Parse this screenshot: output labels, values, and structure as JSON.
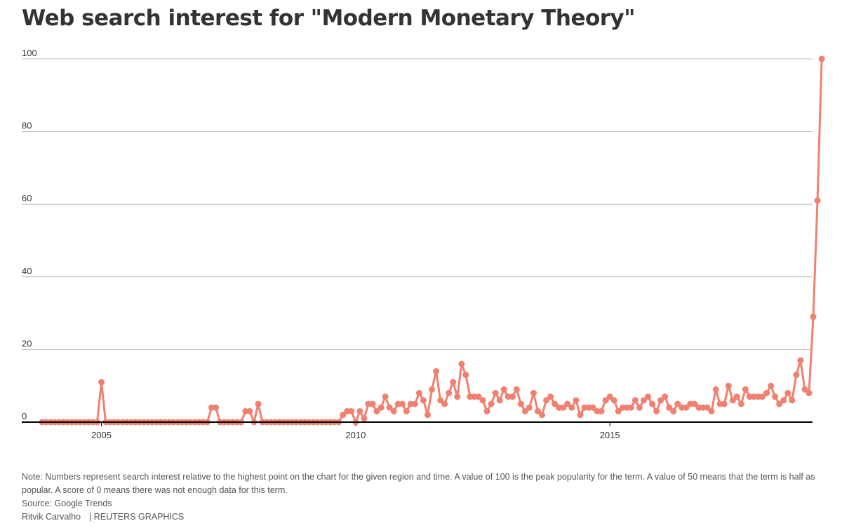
{
  "title": "Web search interest for \"Modern Monetary Theory\"",
  "colors": {
    "line": "#f08070",
    "grid": "#bdbdbd",
    "axis": "#000000"
  },
  "chart_data": {
    "type": "line",
    "title": "Web search interest for \"Modern Monetary Theory\"",
    "xlabel": "",
    "ylabel": "",
    "x_start": "2004-01",
    "x_interval": "month",
    "xlim": [
      "2004-01",
      "2019-03"
    ],
    "ylim": [
      0,
      100
    ],
    "y_ticks": [
      0,
      20,
      40,
      60,
      80,
      100
    ],
    "x_ticks": [
      {
        "label": "2005",
        "value": "2005-03"
      },
      {
        "label": "2010",
        "value": "2010-03"
      },
      {
        "label": "2015",
        "value": "2015-03"
      }
    ],
    "grid": true,
    "markers": true,
    "series": [
      {
        "values": [
          0,
          0,
          0,
          0,
          0,
          0,
          0,
          0,
          0,
          0,
          0,
          0,
          0,
          0,
          11,
          0,
          0,
          0,
          0,
          0,
          0,
          0,
          0,
          0,
          0,
          0,
          0,
          0,
          0,
          0,
          0,
          0,
          0,
          0,
          0,
          0,
          0,
          0,
          0,
          0,
          4,
          4,
          0,
          0,
          0,
          0,
          0,
          0,
          3,
          3,
          0,
          5,
          0,
          0,
          0,
          0,
          0,
          0,
          0,
          0,
          0,
          0,
          0,
          0,
          0,
          0,
          0,
          0,
          0,
          0,
          0,
          2,
          3,
          3,
          0,
          3,
          1,
          5,
          5,
          3,
          4,
          7,
          4,
          3,
          5,
          5,
          3,
          5,
          5,
          8,
          6,
          2,
          9,
          14,
          6,
          5,
          8,
          11,
          7,
          16,
          13,
          7,
          7,
          7,
          6,
          3,
          5,
          8,
          6,
          9,
          7,
          7,
          9,
          5,
          3,
          4,
          8,
          3,
          2,
          6,
          7,
          5,
          4,
          4,
          5,
          4,
          6,
          2,
          4,
          4,
          4,
          3,
          3,
          6,
          7,
          6,
          3,
          4,
          4,
          4,
          6,
          4,
          6,
          7,
          5,
          3,
          6,
          7,
          4,
          3,
          5,
          4,
          4,
          5,
          5,
          4,
          4,
          4,
          3,
          9,
          5,
          5,
          10,
          6,
          7,
          5,
          9,
          7,
          7,
          7,
          7,
          8,
          10,
          7,
          5,
          6,
          8,
          6,
          13,
          17,
          9,
          8,
          29,
          61,
          100
        ]
      }
    ],
    "notes": [
      "Note: Numbers represent search interest relative to the highest point on the chart for the given region and time. A value of 100 is the peak popularity for the term. A value of 50 means that the term is half as popular. A score of 0 means there was not enough data for this term.",
      "Source: Google Trends"
    ],
    "credit": {
      "author": "Ritvik Carvalho",
      "org": "| REUTERS GRAPHICS"
    }
  }
}
